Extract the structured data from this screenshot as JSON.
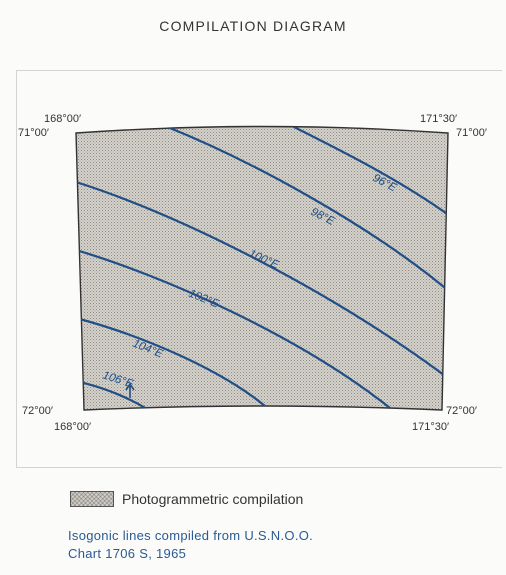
{
  "title": "COMPILATION DIAGRAM",
  "corners": {
    "top_left_lon": "168°00′",
    "top_left_lat": "71°00′",
    "top_right_lon": "171°30′",
    "top_right_lat": "71°00′",
    "bottom_left_lat": "72°00′",
    "bottom_left_lon": "168°00′",
    "bottom_right_lat": "72°00′",
    "bottom_right_lon": "171°30′"
  },
  "isogonic_lines": [
    {
      "label": "96°E"
    },
    {
      "label": "98°E"
    },
    {
      "label": "100°E"
    },
    {
      "label": "102°E"
    },
    {
      "label": "104°E"
    },
    {
      "label": "106°E"
    }
  ],
  "legend": {
    "label": "Photogrammetric compilation"
  },
  "note": {
    "line1": "Isogonic lines compiled from U.S.N.O.O.",
    "line2": "Chart 1706 S, 1965"
  },
  "colors": {
    "isogonic_line": "#1f4f86",
    "compilation_area": "#d2cec8"
  }
}
